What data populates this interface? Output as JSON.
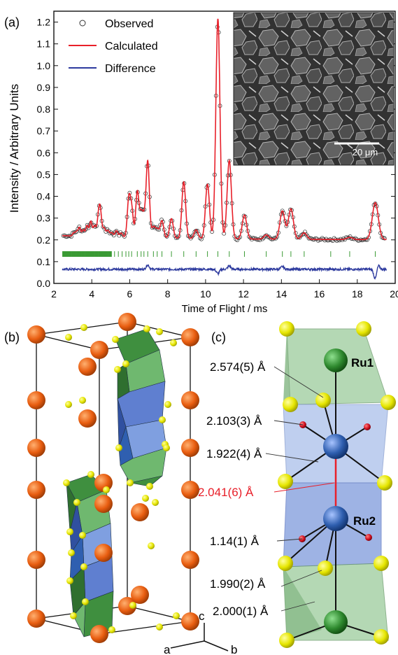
{
  "panel_labels": {
    "a": "(a)",
    "b": "(b)",
    "c": "(c)"
  },
  "colors": {
    "observed": "#333333",
    "calculated": "#e8202a",
    "difference": "#2d3a9e",
    "tick_marks": "#3a9a34",
    "orange_atom": "#e85d10",
    "yellow_atom": "#e6e600",
    "green_atom": "#2f8a2f",
    "blue_atom": "#2f5fb0",
    "red_atom": "#d01020",
    "green_poly": "#6fb86f",
    "blue_poly": "#6f8fd8"
  },
  "chart_data": {
    "type": "line",
    "xlabel": "Time of Flight / ms",
    "ylabel": "Intensity / Arbitrary Units",
    "xlim": [
      2,
      20
    ],
    "ylim": [
      0,
      1.25
    ],
    "xticks": [
      2,
      4,
      6,
      8,
      10,
      12,
      14,
      16,
      18,
      20
    ],
    "yticks": [
      0.0,
      0.1,
      0.2,
      0.3,
      0.4,
      0.5,
      0.6,
      0.7,
      0.8,
      0.9,
      1.0,
      1.1,
      1.2
    ],
    "legend_position": "top-left",
    "baseline": 0.2,
    "peaks": [
      {
        "x": 3.05,
        "y": 0.215
      },
      {
        "x": 3.2,
        "y": 0.22
      },
      {
        "x": 3.35,
        "y": 0.24
      },
      {
        "x": 3.55,
        "y": 0.23
      },
      {
        "x": 3.75,
        "y": 0.25
      },
      {
        "x": 3.95,
        "y": 0.27
      },
      {
        "x": 4.15,
        "y": 0.25
      },
      {
        "x": 4.35,
        "y": 0.28
      },
      {
        "x": 4.45,
        "y": 0.31
      },
      {
        "x": 4.65,
        "y": 0.24
      },
      {
        "x": 4.85,
        "y": 0.23
      },
      {
        "x": 5.05,
        "y": 0.22
      },
      {
        "x": 5.3,
        "y": 0.23
      },
      {
        "x": 5.55,
        "y": 0.22
      },
      {
        "x": 5.95,
        "y": 0.37
      },
      {
        "x": 6.1,
        "y": 0.33
      },
      {
        "x": 6.4,
        "y": 0.41
      },
      {
        "x": 6.6,
        "y": 0.3
      },
      {
        "x": 6.75,
        "y": 0.28
      },
      {
        "x": 6.95,
        "y": 0.55
      },
      {
        "x": 7.25,
        "y": 0.25
      },
      {
        "x": 7.45,
        "y": 0.24
      },
      {
        "x": 7.7,
        "y": 0.28
      },
      {
        "x": 8.2,
        "y": 0.29
      },
      {
        "x": 8.85,
        "y": 0.46
      },
      {
        "x": 9.5,
        "y": 0.24
      },
      {
        "x": 10.1,
        "y": 0.45
      },
      {
        "x": 10.65,
        "y": 1.21
      },
      {
        "x": 11.25,
        "y": 0.56
      },
      {
        "x": 12.05,
        "y": 0.31
      },
      {
        "x": 13.2,
        "y": 0.22
      },
      {
        "x": 14.05,
        "y": 0.33
      },
      {
        "x": 14.5,
        "y": 0.34
      },
      {
        "x": 15.2,
        "y": 0.23
      },
      {
        "x": 17.6,
        "y": 0.21
      },
      {
        "x": 18.95,
        "y": 0.37
      }
    ],
    "difference_baseline": 0.065,
    "difference_features": [
      {
        "x": 6.95,
        "dy": 0.02
      },
      {
        "x": 10.65,
        "dy": -0.02
      },
      {
        "x": 11.25,
        "dy": 0.015
      },
      {
        "x": 14.05,
        "dy": 0.012
      },
      {
        "x": 18.95,
        "dy": -0.045
      },
      {
        "x": 19.1,
        "dy": 0.02
      }
    ],
    "reflection_ticks": [
      2.5,
      2.6,
      2.7,
      2.8,
      2.9,
      3.0,
      3.1,
      3.2,
      3.3,
      3.4,
      3.5,
      3.6,
      3.7,
      3.8,
      3.9,
      4.0,
      4.1,
      4.2,
      4.3,
      4.4,
      4.5,
      4.6,
      4.7,
      4.8,
      4.9,
      5.0,
      5.2,
      5.4,
      5.6,
      5.8,
      5.95,
      6.1,
      6.4,
      6.6,
      6.75,
      6.95,
      7.25,
      7.45,
      7.7,
      8.2,
      8.85,
      9.5,
      10.1,
      10.65,
      11.25,
      12.05,
      13.2,
      14.05,
      14.5,
      15.2,
      16.6,
      17.6,
      18.95
    ],
    "reflection_tick_y": 0.135,
    "series": [
      {
        "name": "Observed"
      },
      {
        "name": "Calculated"
      },
      {
        "name": "Difference"
      }
    ]
  },
  "inset": {
    "scale_bar": "20 μm"
  },
  "panel_c": {
    "atom_labels": {
      "ru1": "Ru1",
      "ru2": "Ru2"
    },
    "distances": [
      {
        "id": "d1",
        "text": "2.574(5) Å",
        "color": "#111111"
      },
      {
        "id": "d2",
        "text": "2.103(3) Å",
        "color": "#111111"
      },
      {
        "id": "d3",
        "text": "1.922(4) Å",
        "color": "#111111"
      },
      {
        "id": "d4",
        "text": "2.041(6) Å",
        "color": "#e8202a"
      },
      {
        "id": "d5",
        "text": "1.14(1) Å",
        "color": "#111111"
      },
      {
        "id": "d6",
        "text": "1.990(2) Å",
        "color": "#111111"
      },
      {
        "id": "d7",
        "text": "2.000(1) Å",
        "color": "#111111"
      }
    ]
  },
  "axes_labels": {
    "a": "a",
    "b": "b",
    "c": "c"
  }
}
